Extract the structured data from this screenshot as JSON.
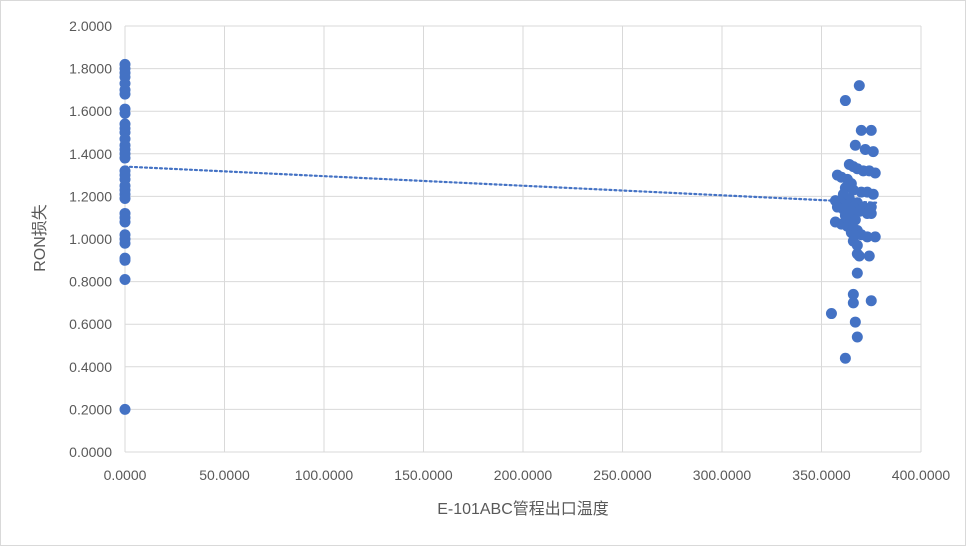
{
  "chart_data": {
    "type": "scatter",
    "title": "",
    "xlabel": "E-101ABC管程出口温度",
    "ylabel": "RON损失",
    "xlim": [
      0,
      400
    ],
    "ylim": [
      0,
      2
    ],
    "x_ticks": [
      "0.0000",
      "50.0000",
      "100.0000",
      "150.0000",
      "200.0000",
      "250.0000",
      "300.0000",
      "350.0000",
      "400.0000"
    ],
    "y_ticks": [
      "0.0000",
      "0.2000",
      "0.4000",
      "0.6000",
      "0.8000",
      "1.0000",
      "1.2000",
      "1.4000",
      "1.6000",
      "1.8000",
      "2.0000"
    ],
    "grid": true,
    "legend": "none",
    "marker_color": "#4472c4",
    "trendline": {
      "type": "linear",
      "style": "dotted",
      "color": "#4472c4",
      "x": [
        0,
        378
      ],
      "y": [
        1.34,
        1.17
      ]
    },
    "points": [
      {
        "x": 0,
        "y": 1.82
      },
      {
        "x": 0,
        "y": 1.8
      },
      {
        "x": 0,
        "y": 1.78
      },
      {
        "x": 0,
        "y": 1.76
      },
      {
        "x": 0,
        "y": 1.73
      },
      {
        "x": 0,
        "y": 1.7
      },
      {
        "x": 0,
        "y": 1.68
      },
      {
        "x": 0,
        "y": 1.61
      },
      {
        "x": 0,
        "y": 1.59
      },
      {
        "x": 0,
        "y": 1.54
      },
      {
        "x": 0,
        "y": 1.52
      },
      {
        "x": 0,
        "y": 1.5
      },
      {
        "x": 0,
        "y": 1.47
      },
      {
        "x": 0,
        "y": 1.44
      },
      {
        "x": 0,
        "y": 1.42
      },
      {
        "x": 0,
        "y": 1.4
      },
      {
        "x": 0,
        "y": 1.38
      },
      {
        "x": 0,
        "y": 1.32
      },
      {
        "x": 0,
        "y": 1.3
      },
      {
        "x": 0,
        "y": 1.28
      },
      {
        "x": 0,
        "y": 1.25
      },
      {
        "x": 0,
        "y": 1.23
      },
      {
        "x": 0,
        "y": 1.21
      },
      {
        "x": 0,
        "y": 1.19
      },
      {
        "x": 0,
        "y": 1.12
      },
      {
        "x": 0,
        "y": 1.1
      },
      {
        "x": 0,
        "y": 1.08
      },
      {
        "x": 0,
        "y": 1.02
      },
      {
        "x": 0,
        "y": 1.0
      },
      {
        "x": 0,
        "y": 0.98
      },
      {
        "x": 0,
        "y": 0.91
      },
      {
        "x": 0,
        "y": 0.9
      },
      {
        "x": 0,
        "y": 0.81
      },
      {
        "x": 0,
        "y": 0.2
      },
      {
        "x": 369,
        "y": 1.72
      },
      {
        "x": 362,
        "y": 1.65
      },
      {
        "x": 370,
        "y": 1.51
      },
      {
        "x": 375,
        "y": 1.51
      },
      {
        "x": 367,
        "y": 1.44
      },
      {
        "x": 372,
        "y": 1.42
      },
      {
        "x": 376,
        "y": 1.41
      },
      {
        "x": 364,
        "y": 1.35
      },
      {
        "x": 366,
        "y": 1.34
      },
      {
        "x": 368,
        "y": 1.33
      },
      {
        "x": 371,
        "y": 1.32
      },
      {
        "x": 374,
        "y": 1.32
      },
      {
        "x": 377,
        "y": 1.31
      },
      {
        "x": 358,
        "y": 1.3
      },
      {
        "x": 360,
        "y": 1.29
      },
      {
        "x": 363,
        "y": 1.28
      },
      {
        "x": 365,
        "y": 1.26
      },
      {
        "x": 362,
        "y": 1.24
      },
      {
        "x": 366,
        "y": 1.23
      },
      {
        "x": 370,
        "y": 1.22
      },
      {
        "x": 373,
        "y": 1.22
      },
      {
        "x": 376,
        "y": 1.21
      },
      {
        "x": 361,
        "y": 1.21
      },
      {
        "x": 364,
        "y": 1.19
      },
      {
        "x": 357,
        "y": 1.18
      },
      {
        "x": 360,
        "y": 1.17
      },
      {
        "x": 368,
        "y": 1.17
      },
      {
        "x": 363,
        "y": 1.16
      },
      {
        "x": 358,
        "y": 1.15
      },
      {
        "x": 366,
        "y": 1.15
      },
      {
        "x": 371,
        "y": 1.15
      },
      {
        "x": 375,
        "y": 1.15
      },
      {
        "x": 361,
        "y": 1.14
      },
      {
        "x": 365,
        "y": 1.13
      },
      {
        "x": 369,
        "y": 1.13
      },
      {
        "x": 373,
        "y": 1.12
      },
      {
        "x": 375,
        "y": 1.12
      },
      {
        "x": 362,
        "y": 1.11
      },
      {
        "x": 364,
        "y": 1.1
      },
      {
        "x": 367,
        "y": 1.09
      },
      {
        "x": 357,
        "y": 1.08
      },
      {
        "x": 360,
        "y": 1.07
      },
      {
        "x": 363,
        "y": 1.06
      },
      {
        "x": 366,
        "y": 1.05
      },
      {
        "x": 368,
        "y": 1.04
      },
      {
        "x": 365,
        "y": 1.03
      },
      {
        "x": 367,
        "y": 1.02
      },
      {
        "x": 370,
        "y": 1.02
      },
      {
        "x": 373,
        "y": 1.01
      },
      {
        "x": 377,
        "y": 1.01
      },
      {
        "x": 366,
        "y": 0.99
      },
      {
        "x": 368,
        "y": 0.97
      },
      {
        "x": 368,
        "y": 0.93
      },
      {
        "x": 369,
        "y": 0.92
      },
      {
        "x": 374,
        "y": 0.92
      },
      {
        "x": 368,
        "y": 0.84
      },
      {
        "x": 366,
        "y": 0.74
      },
      {
        "x": 366,
        "y": 0.7
      },
      {
        "x": 375,
        "y": 0.71
      },
      {
        "x": 355,
        "y": 0.65
      },
      {
        "x": 367,
        "y": 0.61
      },
      {
        "x": 368,
        "y": 0.54
      },
      {
        "x": 362,
        "y": 0.44
      }
    ]
  }
}
